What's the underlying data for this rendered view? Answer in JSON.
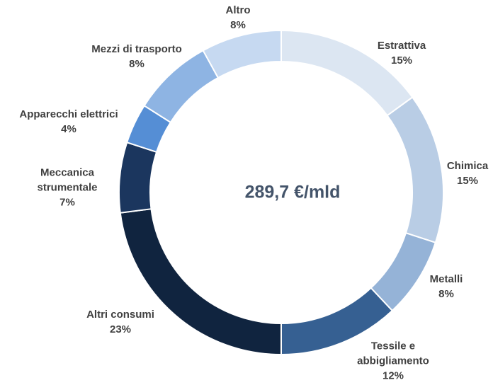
{
  "chart_data": {
    "type": "donut",
    "center_label": "289,7 €/mld",
    "categories": [
      "Estrattiva",
      "Chimica",
      "Metalli",
      "Tessile e abbigliamento",
      "Altri consumi",
      "Meccanica strumentale",
      "Apparecchi elettrici",
      "Mezzi di trasporto",
      "Altro"
    ],
    "values": [
      15,
      15,
      8,
      12,
      23,
      7,
      4,
      8,
      8
    ],
    "value_labels": [
      "15%",
      "15%",
      "8%",
      "12%",
      "23%",
      "7%",
      "4%",
      "8%",
      "8%"
    ],
    "colors": [
      "#dce6f2",
      "#b9cde5",
      "#95b3d7",
      "#366092",
      "#10243f",
      "#1b365e",
      "#558ed5",
      "#8eb4e3",
      "#c6d9f1"
    ]
  }
}
